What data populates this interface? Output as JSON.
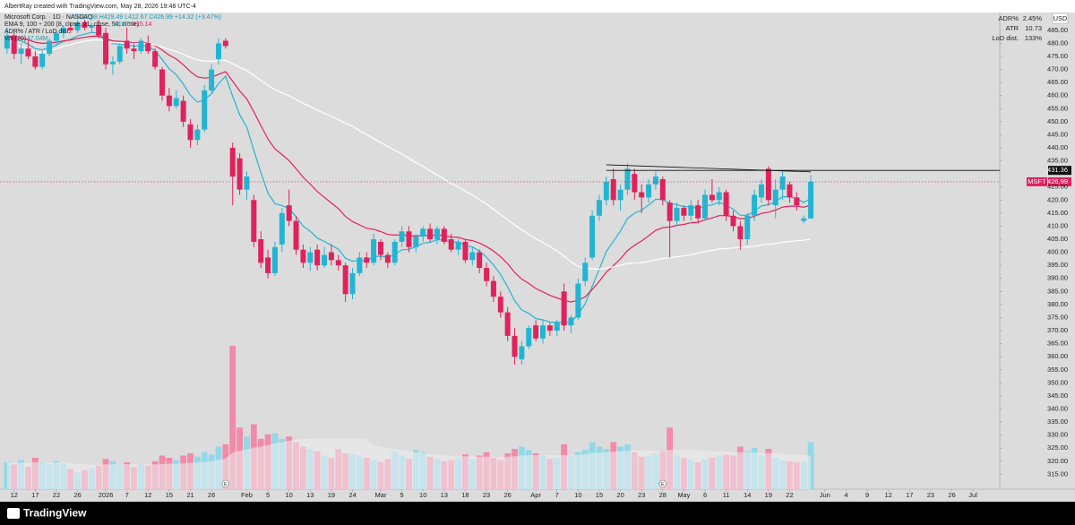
{
  "chart_data": {
    "type": "candlestick",
    "header": "AlbertRay created with TradingView.com, May 28, 2026 19:48 UTC-4",
    "legend": {
      "symbol": "Microsoft Corp. · 1D · NASDAQ",
      "ohlc": "O412.98 H429.49 L412.67 C426.99 +14.32 (+3.47%)",
      "ema": "EMA 9, 100 ÷ 200 (8, close, 21, close, 50, close)",
      "ema_values": [
        "418.00",
        "415.14"
      ],
      "adr": "ADR% / ATR / LoD dist.",
      "vol": "Vol (20)",
      "vol_value": "47.04M"
    },
    "stats": [
      [
        "ADR%",
        "2.45%"
      ],
      [
        "ATR",
        "10.73"
      ],
      [
        "LoD dist.",
        "133%"
      ]
    ],
    "currency": "USD",
    "symbol": "MSFT",
    "last_price": 426.99,
    "level": 431.36,
    "trendline": {
      "from": [
        85,
        433.5
      ],
      "to": [
        114,
        430.8
      ]
    },
    "events": [
      {
        "index": 31,
        "label": "E"
      },
      {
        "index": 93,
        "label": "E"
      }
    ],
    "footer": "TradingView",
    "colors": {
      "up": "#22b5d3",
      "down": "#e0225c",
      "vol_up": "#93d8e8",
      "vol_down": "#f28aa9",
      "background": "#dcdcdc"
    },
    "moving_averages": [
      {
        "length": 9,
        "kind": "ema",
        "color": "#22b5d3"
      },
      {
        "length": 21,
        "kind": "ema",
        "color": "#e0225c"
      },
      {
        "length": 50,
        "kind": "sma",
        "color": "#ffffff"
      }
    ],
    "volume_ma": {
      "length": 20,
      "color": "#efefef"
    },
    "grid": false,
    "candles": [
      [
        478,
        486,
        476,
        483
      ],
      [
        483,
        484,
        474,
        476
      ],
      [
        476,
        480,
        472,
        478
      ],
      [
        478,
        481,
        474,
        475
      ],
      [
        475,
        477,
        470,
        471
      ],
      [
        471,
        477,
        470,
        476
      ],
      [
        476,
        482,
        475,
        481
      ],
      [
        481,
        485,
        479,
        484
      ],
      [
        484,
        487,
        482,
        486
      ],
      [
        486,
        488,
        484,
        485
      ],
      [
        485,
        489,
        484,
        488
      ],
      [
        488,
        489,
        485,
        486
      ],
      [
        486,
        488,
        484,
        487
      ],
      [
        487,
        489,
        482,
        483
      ],
      [
        484,
        486,
        470,
        472
      ],
      [
        472,
        475,
        468,
        473
      ],
      [
        473,
        480,
        472,
        479
      ],
      [
        481,
        486,
        476,
        478
      ],
      [
        478,
        480,
        474,
        477
      ],
      [
        477,
        482,
        476,
        481
      ],
      [
        480,
        483,
        476,
        477
      ],
      [
        477,
        478,
        470,
        471
      ],
      [
        470,
        471,
        458,
        460
      ],
      [
        460,
        463,
        454,
        456
      ],
      [
        456,
        462,
        455,
        459
      ],
      [
        458,
        460,
        448,
        450
      ],
      [
        449,
        451,
        440,
        443
      ],
      [
        443,
        449,
        441,
        447
      ],
      [
        447,
        464,
        446,
        462
      ],
      [
        462,
        472,
        461,
        470
      ],
      [
        474,
        482,
        472,
        480
      ],
      [
        481,
        482,
        478,
        479
      ],
      [
        440,
        442,
        418,
        429
      ],
      [
        436,
        438,
        422,
        424
      ],
      [
        424,
        431,
        420,
        429
      ],
      [
        420,
        422,
        402,
        404
      ],
      [
        405,
        408,
        394,
        396
      ],
      [
        398,
        401,
        390,
        392
      ],
      [
        392,
        404,
        391,
        402
      ],
      [
        403,
        417,
        400,
        415
      ],
      [
        418,
        424,
        410,
        412
      ],
      [
        412,
        414,
        399,
        401
      ],
      [
        401,
        403,
        394,
        396
      ],
      [
        396,
        402,
        393,
        400
      ],
      [
        401,
        403,
        393,
        395
      ],
      [
        395,
        402,
        394,
        399
      ],
      [
        400,
        403,
        395,
        397
      ],
      [
        397,
        399,
        393,
        395
      ],
      [
        395,
        396,
        381,
        384
      ],
      [
        384,
        394,
        382,
        392
      ],
      [
        392,
        400,
        391,
        398
      ],
      [
        398,
        400,
        394,
        396
      ],
      [
        396,
        407,
        395,
        405
      ],
      [
        404,
        405,
        397,
        399
      ],
      [
        399,
        400,
        394,
        396
      ],
      [
        396,
        405,
        395,
        404
      ],
      [
        404,
        410,
        402,
        408
      ],
      [
        408,
        410,
        400,
        402
      ],
      [
        402,
        407,
        400,
        406
      ],
      [
        406,
        410,
        404,
        409
      ],
      [
        409,
        411,
        404,
        405
      ],
      [
        405,
        410,
        403,
        409
      ],
      [
        409,
        410,
        403,
        404
      ],
      [
        405,
        407,
        400,
        401
      ],
      [
        401,
        405,
        399,
        404
      ],
      [
        404,
        405,
        396,
        397
      ],
      [
        397,
        402,
        395,
        400
      ],
      [
        400,
        401,
        392,
        394
      ],
      [
        394,
        396,
        387,
        389
      ],
      [
        389,
        391,
        381,
        383
      ],
      [
        383,
        385,
        375,
        377
      ],
      [
        377,
        379,
        366,
        368
      ],
      [
        368,
        371,
        357,
        360
      ],
      [
        359,
        366,
        357,
        364
      ],
      [
        364,
        372,
        363,
        371
      ],
      [
        372,
        374,
        366,
        367
      ],
      [
        367,
        374,
        365,
        372
      ],
      [
        372,
        373,
        368,
        370
      ],
      [
        370,
        374,
        368,
        373
      ],
      [
        385,
        388,
        370,
        372
      ],
      [
        372,
        376,
        369,
        375
      ],
      [
        375,
        390,
        374,
        388
      ],
      [
        389,
        398,
        387,
        396
      ],
      [
        398,
        416,
        397,
        414
      ],
      [
        414,
        422,
        412,
        420
      ],
      [
        420,
        429,
        418,
        427
      ],
      [
        428,
        432,
        418,
        420
      ],
      [
        420,
        426,
        416,
        424
      ],
      [
        424,
        434,
        422,
        432
      ],
      [
        430,
        432,
        420,
        423
      ],
      [
        423,
        426,
        415,
        421
      ],
      [
        421,
        428,
        419,
        426
      ],
      [
        426,
        431,
        424,
        429
      ],
      [
        428,
        429,
        418,
        420
      ],
      [
        419,
        420,
        398,
        412
      ],
      [
        412,
        419,
        410,
        417
      ],
      [
        417,
        418,
        412,
        414
      ],
      [
        414,
        420,
        412,
        418
      ],
      [
        418,
        420,
        411,
        413
      ],
      [
        413,
        424,
        412,
        422
      ],
      [
        422,
        428,
        419,
        420
      ],
      [
        420,
        425,
        418,
        423
      ],
      [
        423,
        424,
        412,
        414
      ],
      [
        414,
        416,
        408,
        410
      ],
      [
        410,
        412,
        401,
        405
      ],
      [
        405,
        415,
        403,
        414
      ],
      [
        414,
        424,
        412,
        422
      ],
      [
        421,
        428,
        419,
        426
      ],
      [
        432,
        433,
        418,
        420
      ],
      [
        418,
        428,
        413,
        424
      ],
      [
        424,
        431,
        420,
        429
      ],
      [
        426,
        427,
        419,
        421
      ],
      [
        421,
        423,
        416,
        418
      ],
      [
        412,
        414,
        411,
        413
      ],
      [
        412.98,
        429.49,
        412.67,
        426.99
      ]
    ],
    "volume": [
      24,
      22,
      26,
      20,
      28,
      24,
      22,
      25,
      23,
      18,
      15,
      17,
      19,
      21,
      27,
      25,
      22,
      24,
      20,
      22,
      21,
      25,
      30,
      28,
      26,
      30,
      32,
      29,
      33,
      31,
      38,
      40,
      128,
      55,
      47,
      58,
      45,
      49,
      50,
      45,
      47,
      42,
      38,
      36,
      34,
      30,
      28,
      36,
      32,
      31,
      30,
      28,
      26,
      24,
      27,
      34,
      30,
      27,
      35,
      33,
      29,
      27,
      25,
      26,
      28,
      31,
      27,
      30,
      33,
      28,
      26,
      32,
      36,
      38,
      35,
      32,
      30,
      27,
      28,
      40,
      30,
      33,
      35,
      42,
      38,
      36,
      42,
      38,
      40,
      33,
      29,
      30,
      32,
      34,
      55,
      30,
      28,
      26,
      24,
      27,
      28,
      30,
      31,
      30,
      38,
      34,
      37,
      30,
      36,
      28,
      26,
      25,
      24,
      25,
      42
    ],
    "ylim": [
      309.3,
      491.8
    ],
    "xlim": [
      -1,
      140.8
    ],
    "yticks": [
      {
        "value": 485,
        "label": "485.00"
      },
      {
        "value": 480,
        "label": "480.00"
      },
      {
        "value": 475,
        "label": "475.00"
      },
      {
        "value": 470,
        "label": "470.00"
      },
      {
        "value": 465,
        "label": "465.00"
      },
      {
        "value": 460,
        "label": "460.00"
      },
      {
        "value": 455,
        "label": "455.00"
      },
      {
        "value": 450,
        "label": "450.00"
      },
      {
        "value": 445,
        "label": "445.00"
      },
      {
        "value": 440,
        "label": "440.00"
      },
      {
        "value": 435,
        "label": "435.00"
      },
      {
        "value": 425,
        "label": "425.00"
      },
      {
        "value": 420,
        "label": "420.00"
      },
      {
        "value": 415,
        "label": "415.00"
      },
      {
        "value": 410,
        "label": "410.00"
      },
      {
        "value": 405,
        "label": "405.00"
      },
      {
        "value": 400,
        "label": "400.00"
      },
      {
        "value": 395,
        "label": "395.00"
      },
      {
        "value": 390,
        "label": "390.00"
      },
      {
        "value": 385,
        "label": "385.00"
      },
      {
        "value": 380,
        "label": "380.00"
      },
      {
        "value": 375,
        "label": "375.00"
      },
      {
        "value": 370,
        "label": "370.00"
      },
      {
        "value": 365,
        "label": "365.00"
      },
      {
        "value": 360,
        "label": "360.00"
      },
      {
        "value": 355,
        "label": "355.00"
      },
      {
        "value": 350,
        "label": "350.00"
      },
      {
        "value": 345,
        "label": "345.00"
      },
      {
        "value": 340,
        "label": "340.00"
      },
      {
        "value": 335,
        "label": "335.00"
      },
      {
        "value": 330,
        "label": "330.00"
      },
      {
        "value": 325,
        "label": "325.00"
      },
      {
        "value": 320,
        "label": "320.00"
      },
      {
        "value": 315,
        "label": "315.00"
      }
    ],
    "xticks": [
      {
        "value": 1,
        "label": "12"
      },
      {
        "value": 4,
        "label": "17"
      },
      {
        "value": 7,
        "label": "22"
      },
      {
        "value": 10,
        "label": "26"
      },
      {
        "value": 14,
        "label": "2026"
      },
      {
        "value": 17,
        "label": "7"
      },
      {
        "value": 20,
        "label": "12"
      },
      {
        "value": 23,
        "label": "15"
      },
      {
        "value": 26,
        "label": "21"
      },
      {
        "value": 29,
        "label": "26"
      },
      {
        "value": 34,
        "label": "Feb"
      },
      {
        "value": 37,
        "label": "5"
      },
      {
        "value": 40,
        "label": "10"
      },
      {
        "value": 43,
        "label": "13"
      },
      {
        "value": 46,
        "label": "19"
      },
      {
        "value": 49,
        "label": "24"
      },
      {
        "value": 53,
        "label": "Mar"
      },
      {
        "value": 56,
        "label": "5"
      },
      {
        "value": 59,
        "label": "10"
      },
      {
        "value": 62,
        "label": "13"
      },
      {
        "value": 65,
        "label": "18"
      },
      {
        "value": 68,
        "label": "23"
      },
      {
        "value": 71,
        "label": "26"
      },
      {
        "value": 75,
        "label": "Apr"
      },
      {
        "value": 78,
        "label": "7"
      },
      {
        "value": 81,
        "label": "10"
      },
      {
        "value": 84,
        "label": "15"
      },
      {
        "value": 87,
        "label": "20"
      },
      {
        "value": 90,
        "label": "23"
      },
      {
        "value": 93,
        "label": "28"
      },
      {
        "value": 96,
        "label": "May"
      },
      {
        "value": 99,
        "label": "6"
      },
      {
        "value": 102,
        "label": "11"
      },
      {
        "value": 105,
        "label": "14"
      },
      {
        "value": 108,
        "label": "19"
      },
      {
        "value": 111,
        "label": "22"
      },
      {
        "value": 116,
        "label": "Jun"
      },
      {
        "value": 119,
        "label": "4"
      },
      {
        "value": 122,
        "label": "9"
      },
      {
        "value": 125,
        "label": "12"
      },
      {
        "value": 128,
        "label": "17"
      },
      {
        "value": 131,
        "label": "23"
      },
      {
        "value": 134,
        "label": "26"
      },
      {
        "value": 137,
        "label": "Jul"
      }
    ]
  }
}
